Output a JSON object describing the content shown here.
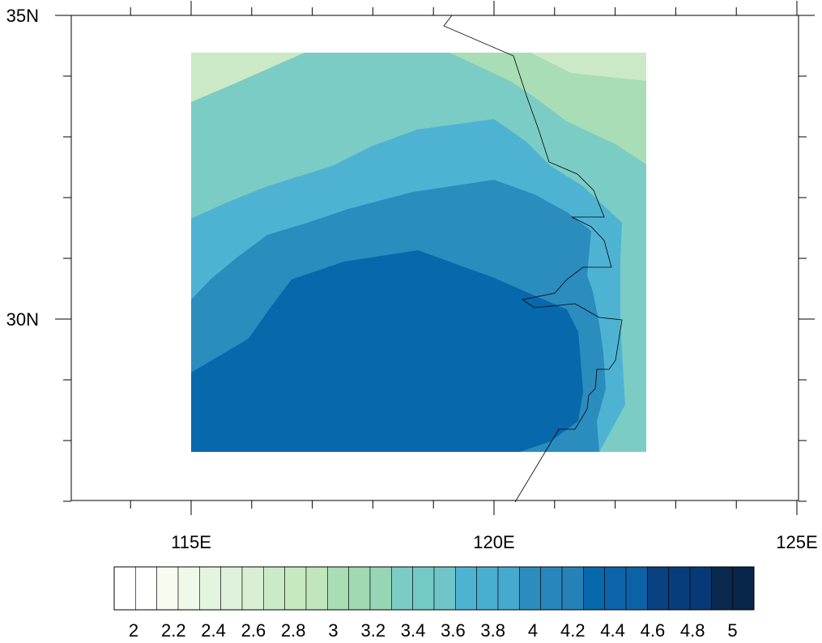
{
  "map": {
    "lat_labels": [
      "35N",
      "30N"
    ],
    "lon_labels": [
      "115E",
      "120E",
      "125E"
    ],
    "lon_range": [
      113,
      125
    ],
    "lat_range": [
      26.7,
      35
    ],
    "data_extent": {
      "lon": [
        115,
        122.5
      ],
      "lat": [
        27.5,
        34.1
      ]
    }
  },
  "colorbar": {
    "labels": [
      "2",
      "2.2",
      "2.4",
      "2.6",
      "2.8",
      "3",
      "3.2",
      "3.4",
      "3.6",
      "3.8",
      "4",
      "4.2",
      "4.4",
      "4.6",
      "4.8",
      "5"
    ],
    "colors": [
      "#ffffff",
      "#ffffff",
      "#f7fcf0",
      "#f0f9e8",
      "#e4f5df",
      "#dff2da",
      "#d8efd3",
      "#cbebc6",
      "#c7e9c0",
      "#c1e6bd",
      "#a8ddb5",
      "#a1d9b3",
      "#98d5b4",
      "#7bccc4",
      "#74c9c7",
      "#6fc5c8",
      "#4eb3d3",
      "#4aaed1",
      "#46a9cf",
      "#2b8cbe",
      "#2986bb",
      "#2681b8",
      "#0868ac",
      "#0b65a8",
      "#0d62a5",
      "#084081",
      "#083d7c",
      "#083977",
      "#08284e",
      "#07264a"
    ]
  },
  "contours": {
    "levels": [
      "3.2-3.4",
      "3.4-3.6",
      "3.8-4.0",
      "4.2-4.4",
      "4.4-4.6",
      "lt-3.2"
    ],
    "colors": {
      "lt32": "#cbe9c6",
      "c3233": "#a8ddb5",
      "c3436": "#7bccc4",
      "c3840": "#4eb3d3",
      "c4244": "#2b8cbe",
      "c4446": "#0868ac"
    }
  }
}
